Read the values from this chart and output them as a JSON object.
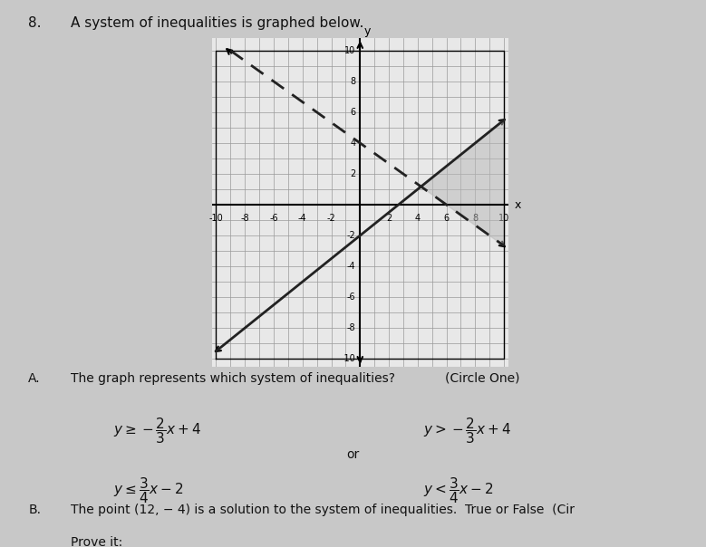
{
  "title": "A system of inequalities is graphed below.",
  "problem_number": "8.",
  "part_a_label": "A.",
  "part_a_text": "The graph represents which system of inequalities?",
  "part_a_circle": "(Circle One)",
  "part_b_label": "B.",
  "part_b_text": "The point (12, − 4) is a solution to the system of inequalities.",
  "part_b_tf": "True or False  (Cir",
  "prove_label": "Prove it:",
  "or_text": "or",
  "xlim": [
    -10,
    10
  ],
  "ylim": [
    -10,
    10
  ],
  "xticks": [
    -10,
    -8,
    -6,
    -4,
    -2,
    2,
    4,
    6,
    8,
    10
  ],
  "yticks": [
    -10,
    -8,
    -6,
    -4,
    -2,
    2,
    4,
    6,
    8,
    10
  ],
  "dashed_slope": -0.6667,
  "dashed_intercept": 4,
  "solid_slope": 0.75,
  "solid_intercept": -2,
  "shade_color": "#b8b8b8",
  "shade_alpha": 0.5,
  "grid_color": "#999999",
  "line_color": "#222222",
  "graph_bg": "#e8e8e8",
  "page_bg": "#c8c8c8"
}
